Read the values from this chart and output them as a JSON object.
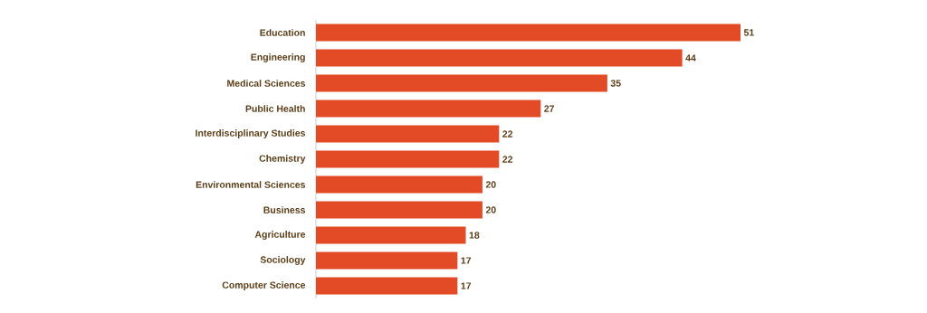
{
  "chart_data": {
    "type": "bar",
    "orientation": "horizontal",
    "data_labels": true,
    "color": "#e34a26",
    "categories": [
      "Education",
      "Engineering",
      "Medical Sciences",
      "Public Health",
      "Interdisciplinary Studies",
      "Chemistry",
      "Environmental Sciences",
      "Business",
      "Agriculture",
      "Sociology",
      "Computer Science"
    ],
    "values": [
      51,
      44,
      35,
      27,
      22,
      22,
      20,
      20,
      18,
      17,
      17
    ]
  }
}
